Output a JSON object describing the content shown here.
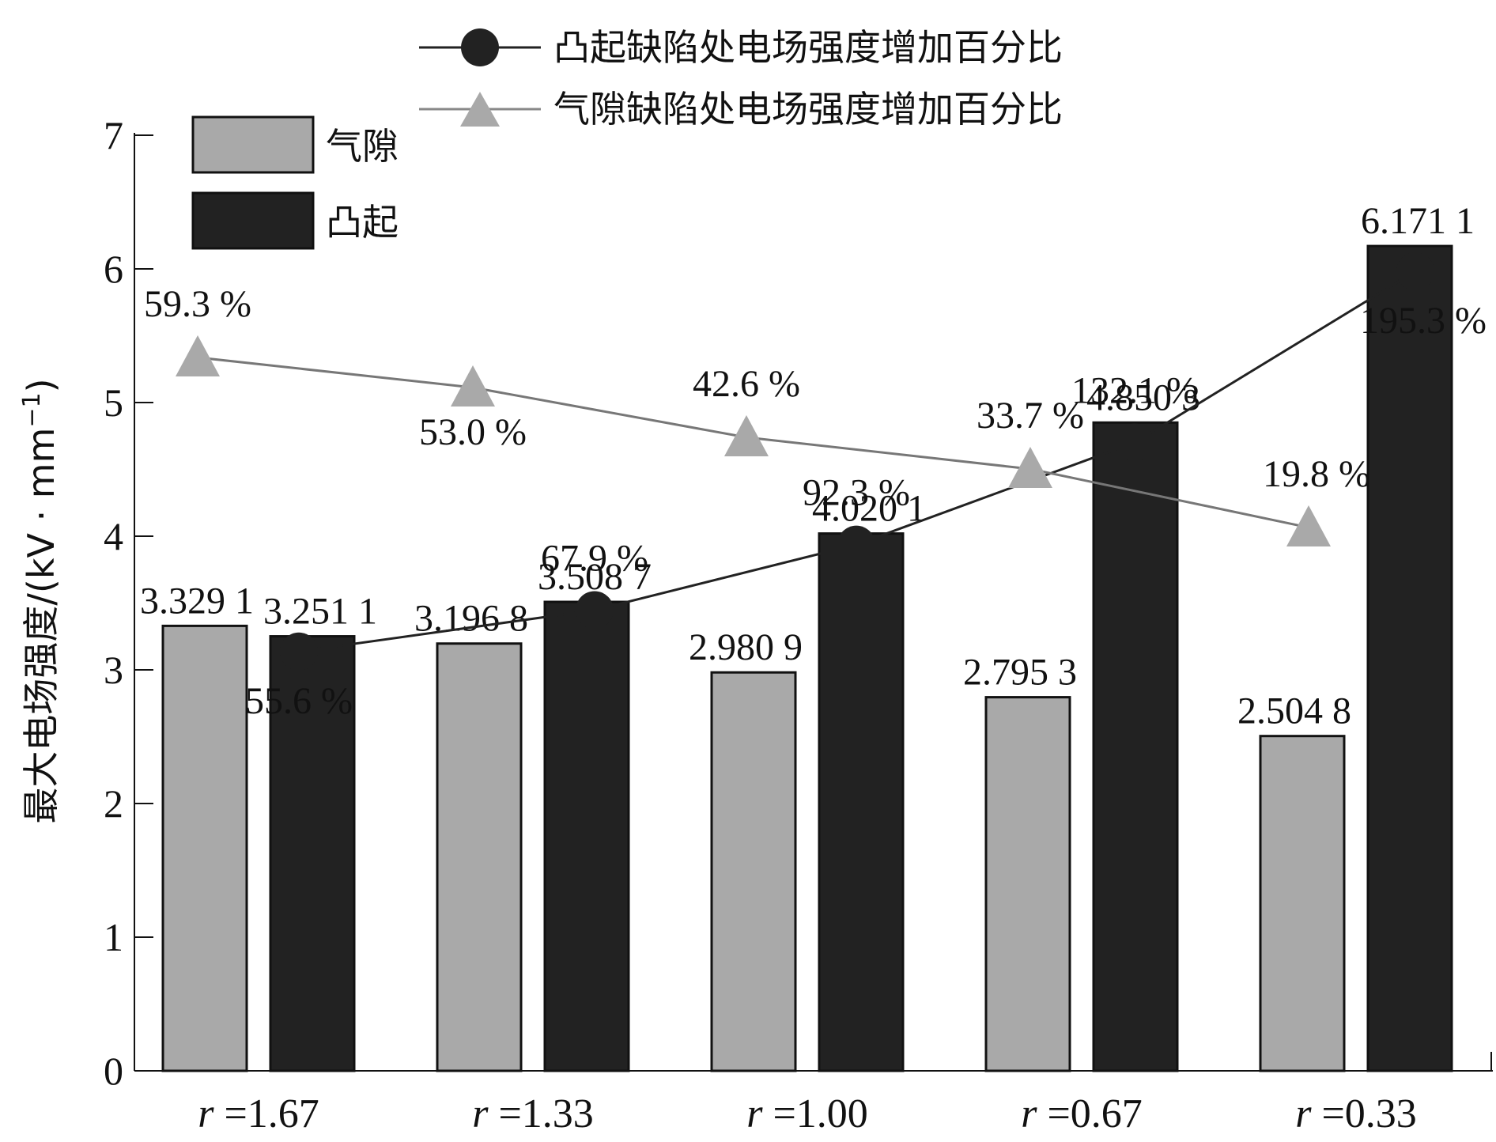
{
  "chart_data": {
    "type": "bar",
    "categories": [
      "r =1.67",
      "r =1.33",
      "r =1.00",
      "r =0.67",
      "r =0.33"
    ],
    "category_labels": [
      {
        "var": "r",
        "rest": " =1.67"
      },
      {
        "var": "r",
        "rest": " =1.33"
      },
      {
        "var": "r",
        "rest": " =1.00"
      },
      {
        "var": "r",
        "rest": " =0.67"
      },
      {
        "var": "r",
        "rest": " =0.33"
      }
    ],
    "series": [
      {
        "name": "气隙",
        "color": "#a9a9a9",
        "values": [
          3.3291,
          3.1968,
          2.9809,
          2.7953,
          2.5048
        ],
        "labels": [
          "3.329 1",
          "3.196 8",
          "2.980 9",
          "2.795 3",
          "2.504 8"
        ]
      },
      {
        "name": "凸起",
        "color": "#222222",
        "values": [
          3.2511,
          3.5087,
          4.0201,
          4.8503,
          6.1711
        ],
        "labels": [
          "3.251 1",
          "3.508 7",
          "4.020 1",
          "4.850 3",
          "6.171 1"
        ]
      }
    ],
    "line_series": [
      {
        "name": "凸起缺陷处电场强度增加百分比",
        "marker": "circle",
        "color": "#222222",
        "values": [
          55.6,
          67.9,
          92.3,
          132.1,
          195.3
        ],
        "labels": [
          "55.6 %",
          "67.9 %",
          "92.3 %",
          "132.1 %",
          "195.3 %"
        ]
      },
      {
        "name": "气隙缺陷处电场强度增加百分比",
        "marker": "triangle",
        "color": "#a9a9a9",
        "values": [
          59.3,
          53.0,
          42.6,
          33.7,
          19.8
        ],
        "labels": [
          "59.3 %",
          "53.0 %",
          "42.6 %",
          "33.7 %",
          "19.8 %"
        ]
      }
    ],
    "ylabel": "最大电场强度/(kV · mm",
    "ylabel_sup": "−1",
    "ylabel_close": ")",
    "ylim": [
      0,
      7
    ],
    "yticks": [
      0,
      1,
      2,
      3,
      4,
      5,
      6,
      7
    ],
    "grid": false,
    "legend_bars_position": "top-left",
    "legend_lines_position": "top"
  }
}
